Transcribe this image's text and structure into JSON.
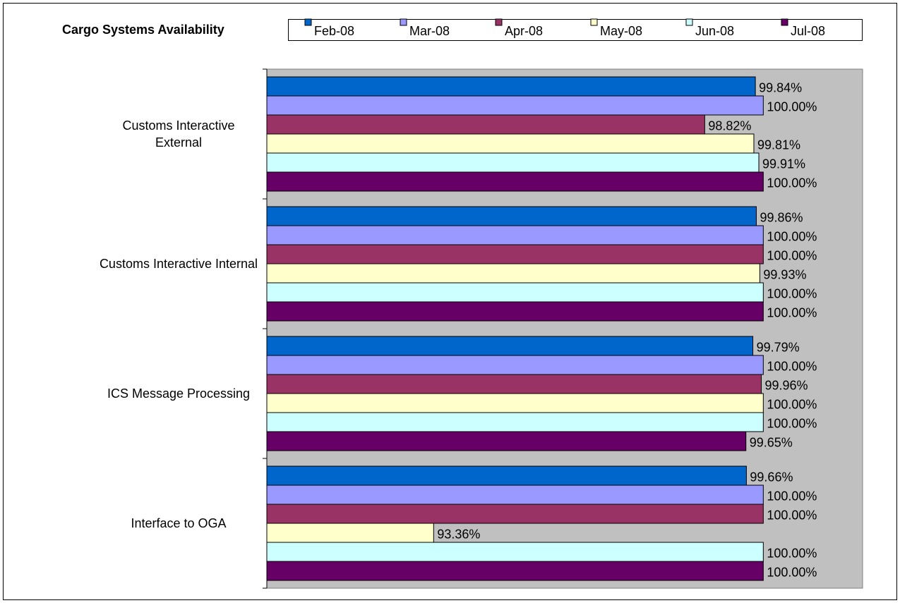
{
  "chart_data": {
    "type": "hbar",
    "title": "Cargo Systems Availability",
    "categories": [
      "Customs Interactive External",
      "Customs Interactive Internal",
      "ICS Message Processing",
      "Interface to OGA"
    ],
    "xlim": [
      90,
      102
    ],
    "series": [
      {
        "name": "Feb-08",
        "color": "#0066cc",
        "values": [
          99.84,
          99.86,
          99.79,
          99.66
        ],
        "value_labels": [
          "99.84%",
          "99.86%",
          "99.79%",
          "99.66%"
        ]
      },
      {
        "name": "Mar-08",
        "color": "#9999ff",
        "values": [
          100,
          100,
          100,
          100
        ],
        "value_labels": [
          "100.00%",
          "100.00%",
          "100.00%",
          "100.00%"
        ]
      },
      {
        "name": "Apr-08",
        "color": "#993366",
        "values": [
          98.82,
          100,
          99.96,
          100
        ],
        "value_labels": [
          "98.82%",
          "100.00%",
          "99.96%",
          "100.00%"
        ]
      },
      {
        "name": "May-08",
        "color": "#ffffcc",
        "values": [
          99.81,
          99.93,
          100,
          93.36
        ],
        "value_labels": [
          "99.81%",
          "99.93%",
          "100.00%",
          "93.36%"
        ]
      },
      {
        "name": "Jun-08",
        "color": "#ccffff",
        "values": [
          99.91,
          100,
          100,
          100
        ],
        "value_labels": [
          "99.91%",
          "100.00%",
          "100.00%",
          "100.00%"
        ]
      },
      {
        "name": "Jul-08",
        "color": "#660066",
        "values": [
          100,
          100,
          99.65,
          100
        ],
        "value_labels": [
          "100.00%",
          "100.00%",
          "99.65%",
          "100.00%"
        ]
      }
    ]
  }
}
